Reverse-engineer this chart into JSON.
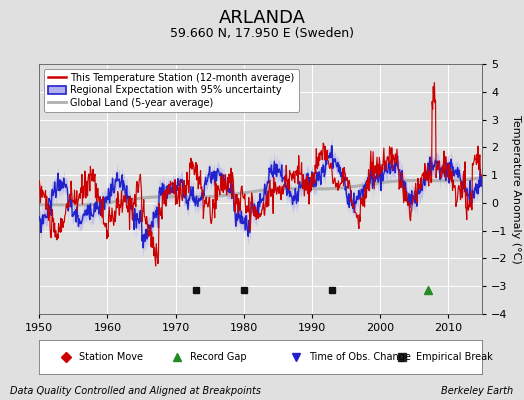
{
  "title": "ARLANDA",
  "subtitle": "59.660 N, 17.950 E (Sweden)",
  "ylabel": "Temperature Anomaly (°C)",
  "footer_left": "Data Quality Controlled and Aligned at Breakpoints",
  "footer_right": "Berkeley Earth",
  "xlim": [
    1950,
    2015
  ],
  "ylim": [
    -4,
    5
  ],
  "yticks": [
    -4,
    -3,
    -2,
    -1,
    0,
    1,
    2,
    3,
    4,
    5
  ],
  "xticks": [
    1950,
    1960,
    1970,
    1980,
    1990,
    2000,
    2010
  ],
  "background_color": "#e0e0e0",
  "plot_background": "#e0e0e0",
  "grid_color": "#ffffff",
  "red_line_color": "#cc0000",
  "blue_line_color": "#2222cc",
  "blue_fill_color": "#b0b0ee",
  "gray_line_color": "#b0b0b0",
  "legend_items": [
    "This Temperature Station (12-month average)",
    "Regional Expectation with 95% uncertainty",
    "Global Land (5-year average)"
  ],
  "marker_legend": [
    {
      "label": "Station Move",
      "color": "#cc0000",
      "marker": "D"
    },
    {
      "label": "Record Gap",
      "color": "#228B22",
      "marker": "^"
    },
    {
      "label": "Time of Obs. Change",
      "color": "#2222cc",
      "marker": "v"
    },
    {
      "label": "Empirical Break",
      "color": "#222222",
      "marker": "s"
    }
  ],
  "empirical_breaks": [
    1973,
    1980,
    1993
  ],
  "record_gap": [
    2007
  ],
  "title_fontsize": 13,
  "subtitle_fontsize": 9,
  "axis_fontsize": 8,
  "legend_fontsize": 7,
  "marker_legend_fontsize": 7,
  "footer_fontsize": 7
}
